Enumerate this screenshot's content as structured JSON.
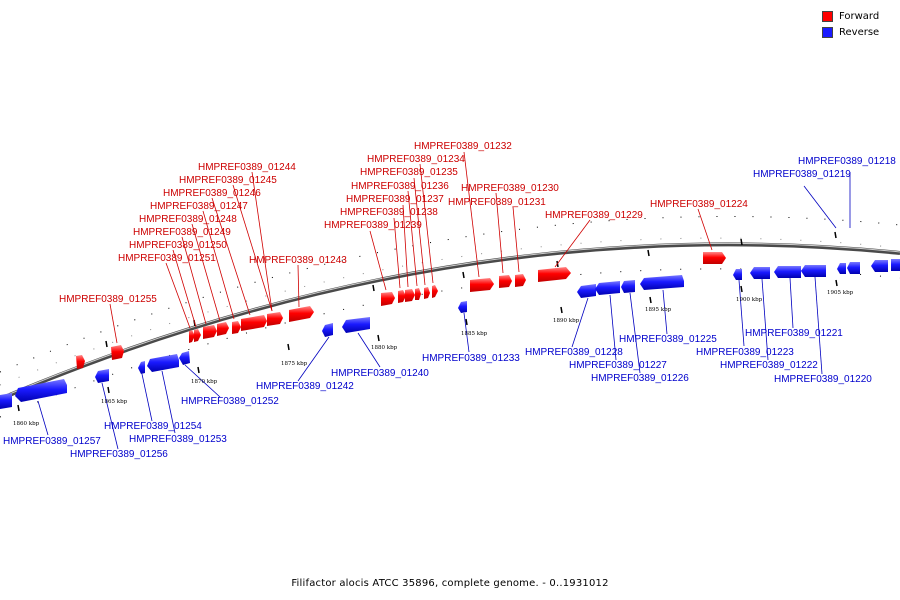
{
  "legend": {
    "forward_label": "Forward",
    "reverse_label": "Reverse",
    "forward_color": "#ff0000",
    "reverse_color": "#1a1aff"
  },
  "caption": "Filifactor alocis ATCC 35896, complete genome. - 0..1931012",
  "scale_labels": [
    "1860 kbp",
    "1865 kbp",
    "1870 kbp",
    "1875 kbp",
    "1880 kbp",
    "1885 kbp",
    "1890 kbp",
    "1895 kbp",
    "1900 kbp",
    "1905 kbp"
  ],
  "forward_genes": [
    {
      "name": "HMPREF0389_01255",
      "pos": 1866.5
    },
    {
      "name": "HMPREF0389_01251",
      "pos": 1871.5
    },
    {
      "name": "HMPREF0389_01250",
      "pos": 1871.8
    },
    {
      "name": "HMPREF0389_01249",
      "pos": 1872.3
    },
    {
      "name": "HMPREF0389_01248",
      "pos": 1872.8
    },
    {
      "name": "HMPREF0389_01247",
      "pos": 1873.3
    },
    {
      "name": "HMPREF0389_01246",
      "pos": 1874.0
    },
    {
      "name": "HMPREF0389_01245",
      "pos": 1874.8
    },
    {
      "name": "HMPREF0389_01244",
      "pos": 1875.6
    },
    {
      "name": "HMPREF0389_01243",
      "pos": 1876.6
    },
    {
      "name": "HMPREF0389_01239",
      "pos": 1881.5
    },
    {
      "name": "HMPREF0389_01238",
      "pos": 1882.2
    },
    {
      "name": "HMPREF0389_01237",
      "pos": 1882.6
    },
    {
      "name": "HMPREF0389_01236",
      "pos": 1883.0
    },
    {
      "name": "HMPREF0389_01235",
      "pos": 1883.4
    },
    {
      "name": "HMPREF0389_01234",
      "pos": 1883.8
    },
    {
      "name": "HMPREF0389_01232",
      "pos": 1885.8
    },
    {
      "name": "HMPREF0389_01230",
      "pos": 1887.2
    },
    {
      "name": "HMPREF0389_01231",
      "pos": 1887.9
    },
    {
      "name": "HMPREF0389_01229",
      "pos": 1889.5
    },
    {
      "name": "HMPREF0389_01224",
      "pos": 1899.0
    }
  ],
  "reverse_genes": [
    {
      "name": "HMPREF0389_01257",
      "pos": 1860.0
    },
    {
      "name": "HMPREF0389_01256",
      "pos": 1864.8
    },
    {
      "name": "HMPREF0389_01254",
      "pos": 1867.5
    },
    {
      "name": "HMPREF0389_01253",
      "pos": 1869.0
    },
    {
      "name": "HMPREF0389_01252",
      "pos": 1870.5
    },
    {
      "name": "HMPREF0389_01242",
      "pos": 1877.8
    },
    {
      "name": "HMPREF0389_01240",
      "pos": 1879.2
    },
    {
      "name": "HMPREF0389_01233",
      "pos": 1884.7
    },
    {
      "name": "HMPREF0389_01228",
      "pos": 1890.2
    },
    {
      "name": "HMPREF0389_01227",
      "pos": 1891.5
    },
    {
      "name": "HMPREF0389_01226",
      "pos": 1893.0
    },
    {
      "name": "HMPREF0389_01225",
      "pos": 1895.5
    },
    {
      "name": "HMPREF0389_01223",
      "pos": 1899.8
    },
    {
      "name": "HMPREF0389_01222",
      "pos": 1901.0
    },
    {
      "name": "HMPREF0389_01221",
      "pos": 1902.5
    },
    {
      "name": "HMPREF0389_01220",
      "pos": 1904.0
    },
    {
      "name": "HMPREF0389_01219",
      "pos": 1906.0
    },
    {
      "name": "HMPREF0389_01218",
      "pos": 1907.5
    }
  ]
}
